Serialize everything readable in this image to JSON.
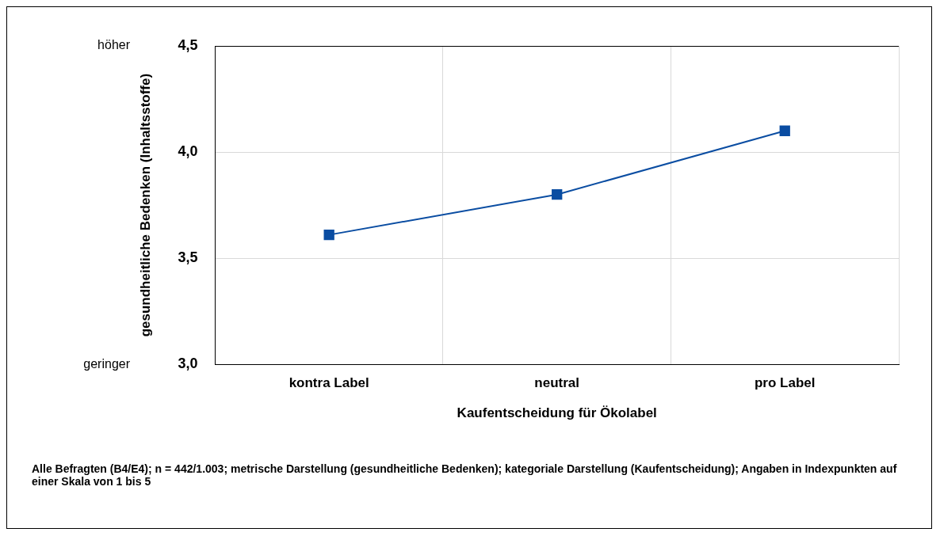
{
  "chart_data": {
    "type": "line",
    "xlabel": "Kaufentscheidung für Ökolabel",
    "ylabel": "gesundheitliche Bedenken (Inhaltsstoffe)",
    "categories": [
      "kontra Label",
      "neutral",
      "pro Label"
    ],
    "series": [
      {
        "color": "#0a4da2",
        "values": [
          3.61,
          3.8,
          4.1
        ]
      }
    ],
    "ylim": [
      3.0,
      4.5
    ],
    "yticks": [
      {
        "value": 3.0,
        "label": "3,0"
      },
      {
        "value": 3.5,
        "label": "3,5"
      },
      {
        "value": 4.0,
        "label": "4,0"
      },
      {
        "value": 4.5,
        "label": "4,5"
      }
    ],
    "grid": true,
    "legend": false,
    "marker": "square",
    "line_style": "solid",
    "annotations": [
      "höher",
      "geringer",
      "Alle Befragten (B4/E4); n = 442/1.003; metrische Darstellung (gesundheitliche Bedenken); kategoriale Darstellung (Kaufentscheidung); Angaben in Indexpunkten auf einer Skala von 1 bis 5"
    ]
  }
}
